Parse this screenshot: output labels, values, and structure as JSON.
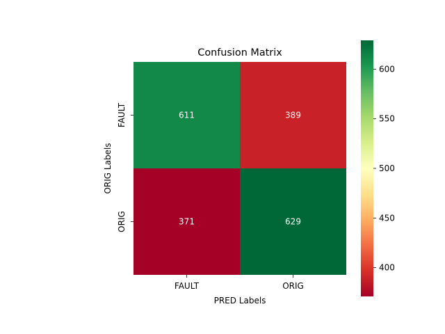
{
  "chart_data": {
    "type": "heatmap",
    "title": "Confusion Matrix",
    "xlabel": "PRED Labels",
    "ylabel": "ORIG Labels",
    "x_categories": [
      "FAULT",
      "ORIG"
    ],
    "y_categories": [
      "FAULT",
      "ORIG"
    ],
    "values": [
      [
        611,
        389
      ],
      [
        371,
        629
      ]
    ],
    "colormap": "RdYlGn",
    "color_range": [
      371,
      629
    ],
    "colorbar_ticks": [
      400,
      450,
      500,
      550,
      600
    ],
    "annotation_color": "#ffffff"
  }
}
